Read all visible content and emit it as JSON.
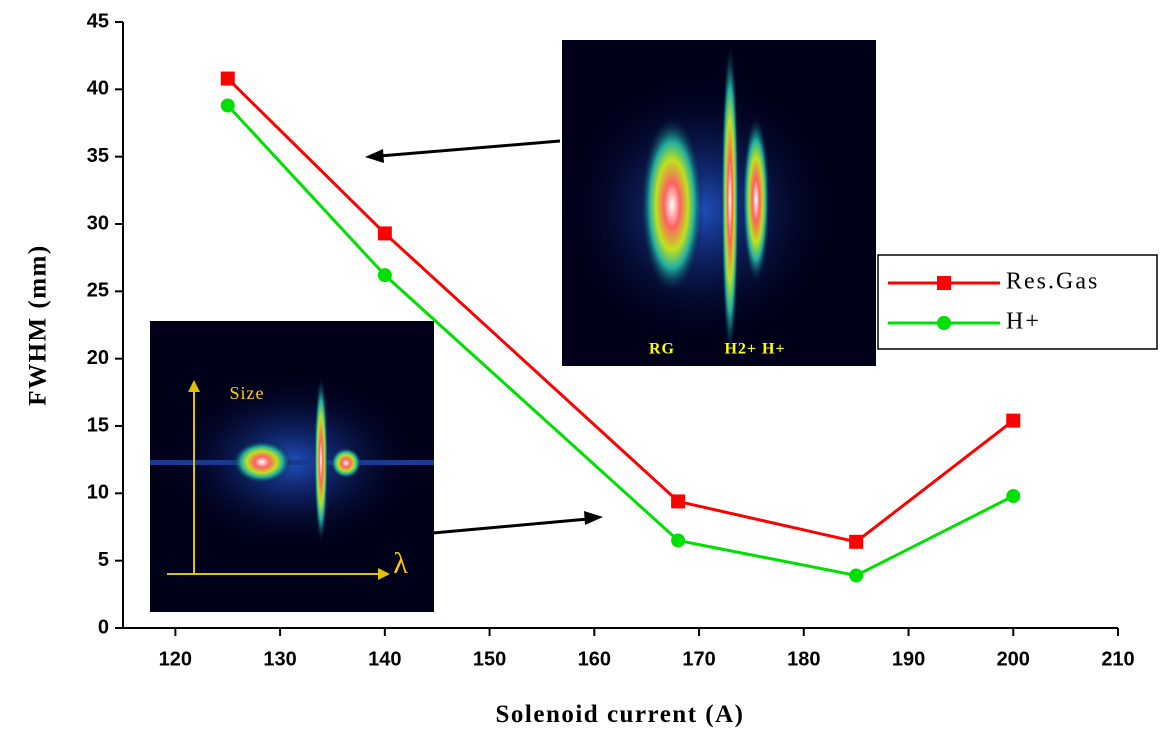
{
  "chart_data": {
    "type": "line",
    "x_label": "Solenoid current (A)",
    "y_label": "FWHM (mm)",
    "x": [
      125,
      140,
      168,
      185,
      200
    ],
    "series": [
      {
        "name": "Res.Gas",
        "color": "#ff0000",
        "marker": "square",
        "values": [
          40.8,
          29.3,
          9.4,
          6.4,
          15.4
        ]
      },
      {
        "name": "H+",
        "color": "#00e000",
        "marker": "circle",
        "values": [
          38.8,
          26.2,
          6.5,
          3.9,
          9.8
        ]
      }
    ],
    "xlim": [
      115,
      210
    ],
    "xticks": [
      120,
      130,
      140,
      150,
      160,
      170,
      180,
      190,
      200,
      210
    ],
    "ylim": [
      0,
      45
    ],
    "yticks": [
      0,
      5,
      10,
      15,
      20,
      25,
      30,
      35,
      40,
      45
    ],
    "grid": true,
    "grid_color": "#0000cc",
    "legend": "right",
    "annotations": [
      {
        "text": "RG"
      },
      {
        "text": "H2+ H+"
      },
      {
        "text": "Size"
      },
      {
        "text": "λ"
      }
    ]
  }
}
